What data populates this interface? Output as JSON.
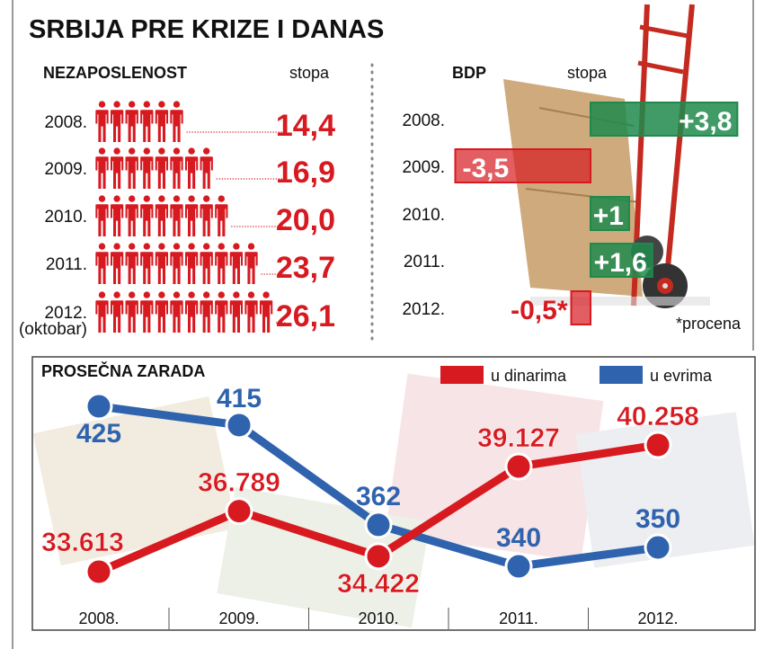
{
  "title": "SRBIJA PRE KRIZE I DANAS",
  "chart_data": [
    {
      "type": "bar",
      "title": "NEZAPOSLENOST",
      "value_header": "stopa",
      "categories": [
        "2008.",
        "2009.",
        "2010.",
        "2011.",
        "2012."
      ],
      "category_notes": [
        "",
        "",
        "",
        "",
        "(oktobar)"
      ],
      "values": [
        14.4,
        16.9,
        20.0,
        23.7,
        26.1
      ],
      "value_labels": [
        "14,4",
        "16,9",
        "20,0",
        "23,7",
        "26,1"
      ],
      "icon_counts": [
        6,
        8,
        9,
        11,
        12
      ],
      "icon": "person-icon",
      "color": "#d71920"
    },
    {
      "type": "bar",
      "title": "BDP",
      "value_header": "stopa",
      "categories": [
        "2008.",
        "2009.",
        "2010.",
        "2011.",
        "2012."
      ],
      "values": [
        3.8,
        -3.5,
        1,
        1.6,
        -0.5
      ],
      "value_labels": [
        "+3,8",
        "-3,5",
        "+1",
        "+1,6",
        "-0,5*"
      ],
      "footnote": "*procena",
      "positive_color": "#1f8a4c",
      "negative_color": "#d71920"
    },
    {
      "type": "line",
      "title": "PROSEČNA ZARADA",
      "categories": [
        "2008.",
        "2009.",
        "2010.",
        "2011.",
        "2012."
      ],
      "series": [
        {
          "name": "u dinarima",
          "values": [
            33613,
            36789,
            34422,
            39127,
            40258
          ],
          "labels": [
            "33.613",
            "36.789",
            "34.422",
            "39.127",
            "40.258"
          ],
          "color": "#d71920"
        },
        {
          "name": "u evrima",
          "values": [
            425,
            415,
            362,
            340,
            350
          ],
          "labels": [
            "425",
            "415",
            "362",
            "340",
            "350"
          ],
          "color": "#2f63ad"
        }
      ],
      "legend": "top-right"
    }
  ]
}
